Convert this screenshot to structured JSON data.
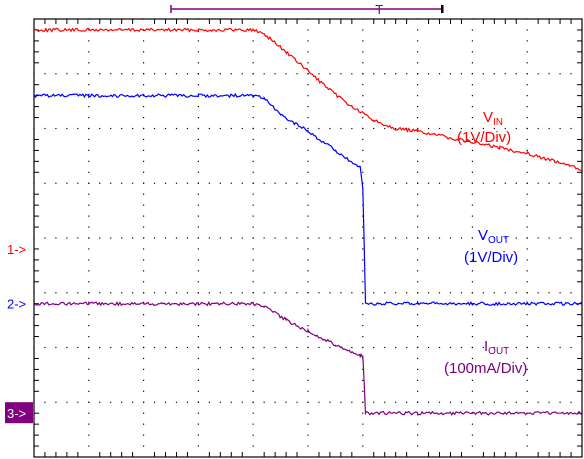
{
  "chart_data": {
    "type": "line",
    "title": "",
    "xlabel": "",
    "ylabel": "",
    "grid": true,
    "x_divisions": 10,
    "y_divisions": 8,
    "xlim": [
      0,
      10
    ],
    "ylim": [
      0,
      8
    ],
    "channel_markers": [
      {
        "label": "1->",
        "level": 3.8,
        "color": "#ff0000",
        "boxed": false
      },
      {
        "label": "2->",
        "level": 2.8,
        "color": "#0000ff",
        "boxed": false
      },
      {
        "label": "3->",
        "level": 0.8,
        "color": "#ffffff",
        "box_color": "#800080",
        "boxed": true
      }
    ],
    "series": [
      {
        "name": "VIN",
        "color": "#ff0000",
        "label_main": "V",
        "label_sub": "IN",
        "label_scale": "(1V/Div)",
        "x": [
          0,
          1,
          2,
          3,
          4,
          4.2,
          4.6,
          5.0,
          5.4,
          5.8,
          6.2,
          6.6,
          7.0,
          7.5,
          8.0,
          8.5,
          9.0,
          9.5,
          10.0
        ],
        "y": [
          7.8,
          7.8,
          7.8,
          7.8,
          7.8,
          7.73,
          7.4,
          7.05,
          6.7,
          6.4,
          6.15,
          6.0,
          5.95,
          5.85,
          5.75,
          5.65,
          5.55,
          5.4,
          5.25
        ]
      },
      {
        "name": "VOUT",
        "color": "#0000ff",
        "label_main": "V",
        "label_sub": "OUT",
        "label_scale": "(1V/Div)",
        "x": [
          0,
          1,
          2,
          3,
          4,
          4.2,
          4.5,
          5.0,
          5.5,
          5.9,
          5.95,
          6.0,
          6.05,
          7.0,
          8.0,
          9.0,
          10.0
        ],
        "y": [
          6.6,
          6.6,
          6.6,
          6.6,
          6.6,
          6.55,
          6.25,
          5.95,
          5.6,
          5.3,
          5.3,
          4.9,
          2.8,
          2.8,
          2.8,
          2.8,
          2.8
        ]
      },
      {
        "name": "IOUT",
        "color": "#800080",
        "label_main": "I",
        "label_sub": "OUT",
        "label_scale": "(100mA/Div)",
        "x": [
          0,
          1,
          2,
          3,
          4,
          4.2,
          4.6,
          5.0,
          5.5,
          5.95,
          6.0,
          6.05,
          7.0,
          8.0,
          9.0,
          10.0
        ],
        "y": [
          2.8,
          2.8,
          2.8,
          2.8,
          2.8,
          2.75,
          2.5,
          2.3,
          2.05,
          1.85,
          1.85,
          0.8,
          0.8,
          0.8,
          0.8,
          0.8
        ]
      }
    ],
    "trigger_bar": {
      "start": 2.5,
      "end": 7.45,
      "marker": 6.3,
      "marker_label": "T",
      "color": "#800080"
    }
  }
}
